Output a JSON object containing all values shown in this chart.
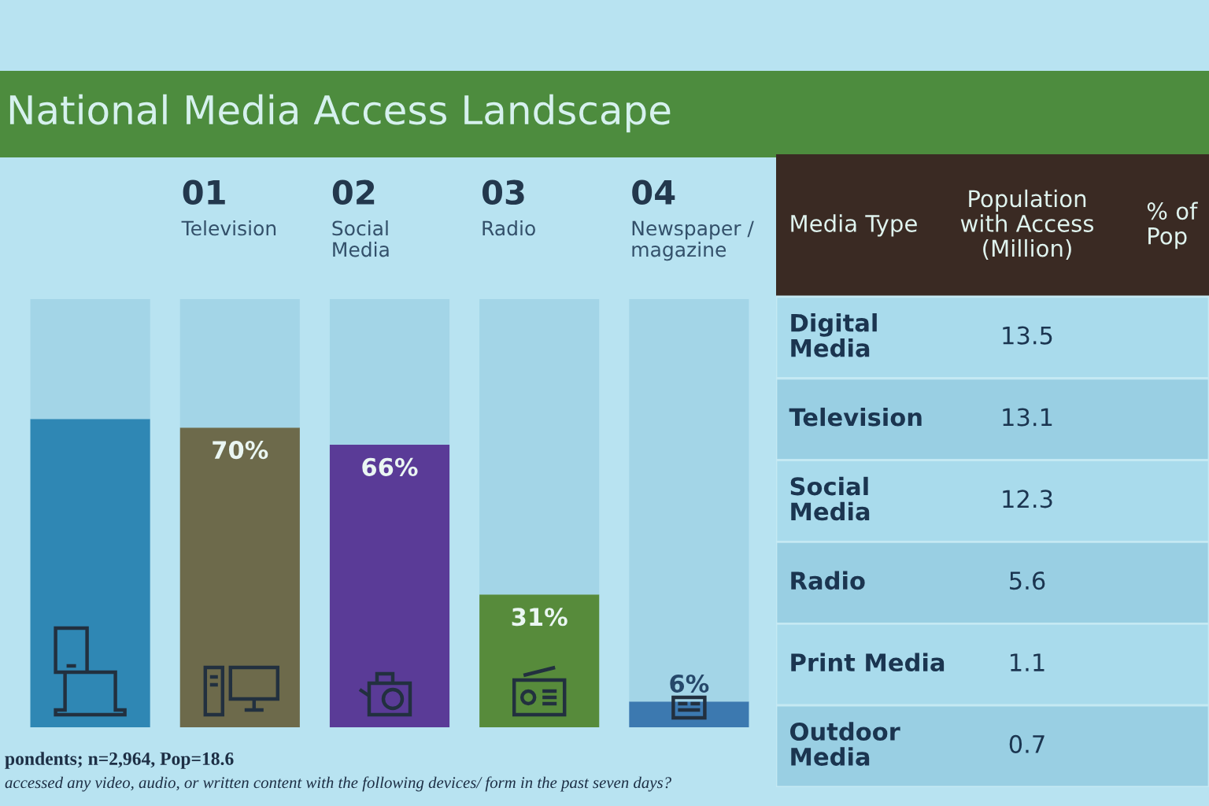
{
  "chart_data": [
    {
      "type": "bar",
      "title": "National Media Access Landscape",
      "categories": [
        null,
        "01\nTelevision",
        "02\nSocial\nMedia",
        "03\nRadio",
        "04\nNewspaper /\nmagazine"
      ],
      "stacked": true,
      "series": [
        {
          "colors": [
            "#2f87b4",
            "#6d6a4b",
            "#5a3b97",
            "#578b3b",
            "#3c79b0"
          ],
          "values": [
            72,
            70,
            66,
            31,
            6
          ],
          "value_labels": [
            null,
            "70%",
            "66%",
            "31%",
            "6%"
          ]
        },
        {
          "color": "#a3d5e7",
          "values": [
            28,
            30,
            34,
            69,
            94
          ]
        }
      ],
      "ylim": [
        0,
        100
      ],
      "tick_labels": "x",
      "annotations": [
        "pondents; n=2,964, Pop=18.6",
        "accessed any video, audio, or written content with the following devices/ form in the past seven days?"
      ]
    },
    {
      "type": "other",
      "xlabel": "Media Type",
      "categories": [
        "Digital\nMedia",
        "Television",
        "Social\nMedia",
        "Radio",
        "Print Media",
        "Outdoor\nMedia"
      ],
      "series": [
        {
          "name": "Population\nwith Access\n(Million)",
          "values": [
            13.5,
            13.1,
            12.3,
            5.6,
            1.1,
            0.7
          ]
        }
      ],
      "data_labels": true,
      "annotations": [
        "% of\nPop"
      ]
    }
  ]
}
